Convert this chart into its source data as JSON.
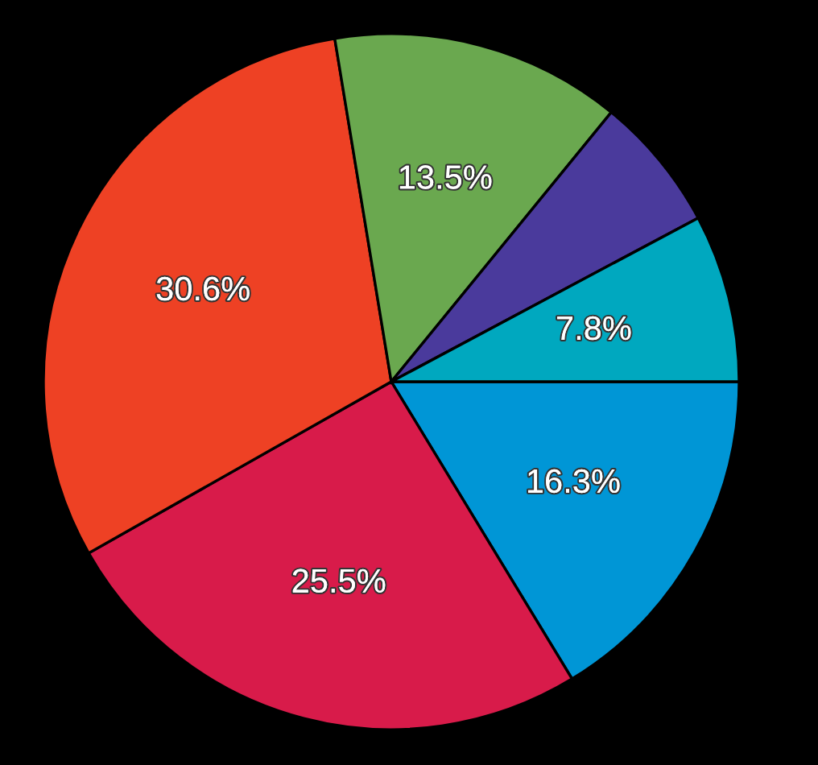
{
  "chart_data": {
    "type": "pie",
    "categories": [
      null,
      null,
      null,
      null,
      null,
      null
    ],
    "values": [
      16.3,
      25.5,
      30.6,
      13.5,
      6.3,
      7.8
    ],
    "colors": [
      "#0096d6",
      "#d81b4a",
      "#ee4124",
      "#6aa84f",
      "#4a3a9c",
      "#00a8bf"
    ],
    "value_labels": [
      "16.3%",
      "25.5%",
      "30.6%",
      "13.5%",
      null,
      "7.8%"
    ]
  }
}
